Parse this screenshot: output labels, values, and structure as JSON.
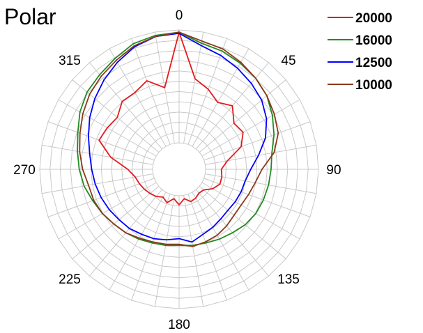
{
  "chart_data": {
    "type": "polar-line",
    "title": "Polar",
    "angle_ticks": [
      "0",
      "45",
      "90",
      "135",
      "180",
      "225",
      "270",
      "315"
    ],
    "radial_range": [
      0,
      1
    ],
    "grid": true,
    "legend_position": "top-right",
    "angles_deg": [
      0,
      10,
      20,
      30,
      40,
      50,
      60,
      70,
      80,
      90,
      100,
      110,
      120,
      130,
      140,
      150,
      160,
      170,
      180,
      190,
      200,
      210,
      220,
      230,
      240,
      250,
      260,
      270,
      280,
      290,
      300,
      310,
      320,
      330,
      340,
      350
    ],
    "series": [
      {
        "name": "20000",
        "color": "#e31a1c",
        "values": [
          0.98,
          0.58,
          0.52,
          0.45,
          0.5,
          0.4,
          0.42,
          0.35,
          0.2,
          0.14,
          0.15,
          0.15,
          0.11,
          0.05,
          0.04,
          0.06,
          0.07,
          0.03,
          0.08,
          0.03,
          0.08,
          0.05,
          0.08,
          0.1,
          0.12,
          0.14,
          0.16,
          0.22,
          0.38,
          0.52,
          0.5,
          0.48,
          0.55,
          0.55,
          0.6,
          0.5
        ]
      },
      {
        "name": "16000",
        "color": "#228b22",
        "values": [
          0.98,
          0.9,
          0.88,
          0.85,
          0.82,
          0.78,
          0.72,
          0.66,
          0.6,
          0.58,
          0.57,
          0.56,
          0.55,
          0.53,
          0.5,
          0.48,
          0.46,
          0.45,
          0.44,
          0.45,
          0.46,
          0.48,
          0.5,
          0.52,
          0.55,
          0.58,
          0.62,
          0.65,
          0.68,
          0.72,
          0.78,
          0.83,
          0.86,
          0.9,
          0.95,
          0.97
        ]
      },
      {
        "name": "12500",
        "color": "#0000ff",
        "values": [
          0.97,
          0.88,
          0.84,
          0.8,
          0.76,
          0.72,
          0.66,
          0.58,
          0.48,
          0.4,
          0.36,
          0.35,
          0.34,
          0.33,
          0.34,
          0.36,
          0.38,
          0.42,
          0.38,
          0.4,
          0.42,
          0.43,
          0.45,
          0.46,
          0.48,
          0.5,
          0.52,
          0.54,
          0.57,
          0.62,
          0.68,
          0.74,
          0.8,
          0.86,
          0.92,
          0.96
        ]
      },
      {
        "name": "10000",
        "color": "#8b3a1a",
        "values": [
          0.98,
          0.92,
          0.9,
          0.86,
          0.82,
          0.78,
          0.74,
          0.7,
          0.62,
          0.5,
          0.45,
          0.42,
          0.4,
          0.4,
          0.42,
          0.44,
          0.45,
          0.46,
          0.43,
          0.44,
          0.45,
          0.47,
          0.5,
          0.52,
          0.55,
          0.57,
          0.58,
          0.62,
          0.66,
          0.7,
          0.75,
          0.8,
          0.84,
          0.88,
          0.93,
          0.96
        ]
      }
    ]
  }
}
